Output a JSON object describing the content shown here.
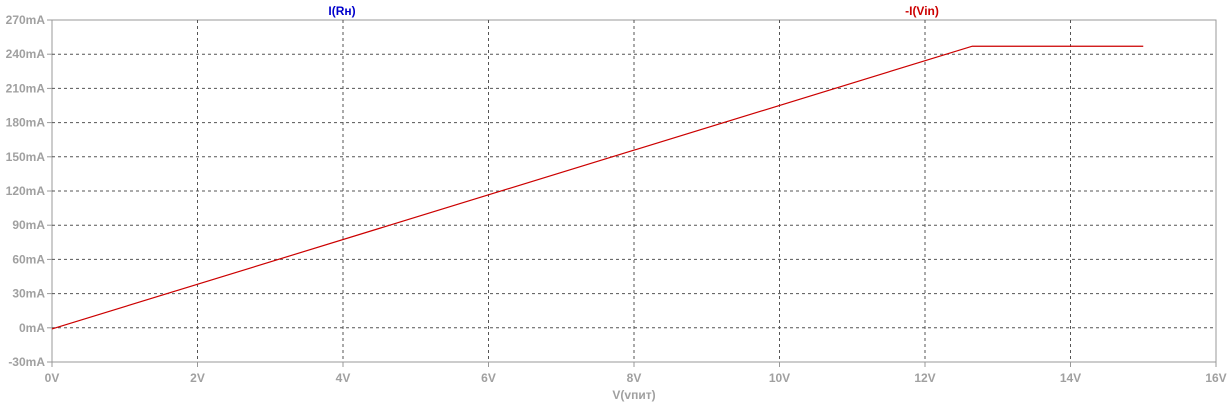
{
  "chart_data": {
    "type": "line",
    "xlabel": "V(vпит)",
    "xlim": [
      0,
      16
    ],
    "ylim": [
      -30,
      270
    ],
    "xticks": [
      0,
      2,
      4,
      6,
      8,
      10,
      12,
      14,
      16
    ],
    "xtick_labels": [
      "0V",
      "2V",
      "4V",
      "6V",
      "8V",
      "10V",
      "12V",
      "14V",
      "16V"
    ],
    "yticks": [
      -30,
      0,
      30,
      60,
      90,
      120,
      150,
      180,
      210,
      240,
      270
    ],
    "ytick_labels": [
      "-30mA",
      "0mA",
      "30mA",
      "60mA",
      "90mA",
      "120mA",
      "150mA",
      "180mA",
      "210mA",
      "240mA",
      "270mA"
    ],
    "grid": true,
    "legend": [
      {
        "name": "I(Rн)",
        "color": "#0000cc",
        "position": "top"
      },
      {
        "name": "-I(Vin)",
        "color": "#cc0000",
        "position": "top"
      }
    ],
    "series": [
      {
        "name": "-I(Vin)",
        "color": "#cc0000",
        "points": [
          [
            0,
            -1
          ],
          [
            12.65,
            247
          ],
          [
            15,
            247
          ]
        ]
      }
    ],
    "colors": {
      "axis": "#999999",
      "tick_text": "#a0a0a0",
      "grid": "#555555",
      "background": "#ffffff"
    }
  }
}
